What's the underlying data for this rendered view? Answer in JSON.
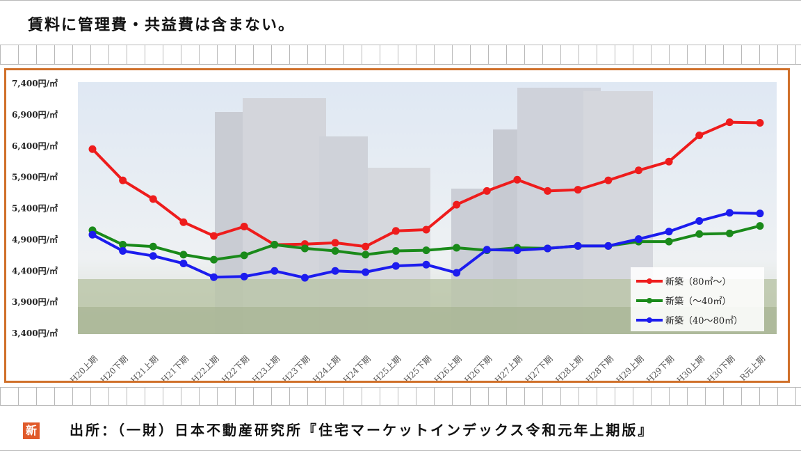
{
  "header_note": "賃料に管理費・共益費は含まない。",
  "source_text": "出所：（一財）日本不動産研究所『住宅マーケットインデックス令和元年上期版』",
  "badge_text": "新",
  "colors": {
    "frame": "#d0702a",
    "red": "#ee1c1c",
    "green": "#1a8a1a",
    "blue": "#1c1cee"
  },
  "chart_data": {
    "type": "line",
    "categories": [
      "H20上期",
      "H20下期",
      "H21上期",
      "H21下期",
      "H22上期",
      "H22下期",
      "H23上期",
      "H23下期",
      "H24上期",
      "H24下期",
      "H25上期",
      "H25下期",
      "H26上期",
      "H26下期",
      "H27上期",
      "H27下期",
      "H28上期",
      "H28下期",
      "H29上期",
      "H29下期",
      "H30上期",
      "H30下期",
      "R元上期"
    ],
    "ylim": [
      3400,
      7400
    ],
    "yticks": [
      3400,
      3900,
      4400,
      4900,
      5400,
      5900,
      6400,
      6900,
      7400
    ],
    "ytick_labels": [
      "3,400円/㎡",
      "3,900円/㎡",
      "4,400円/㎡",
      "4,900円/㎡",
      "5,400円/㎡",
      "5,900円/㎡",
      "6,400円/㎡",
      "6,900円/㎡",
      "7,400円/㎡"
    ],
    "grid": false,
    "legend_position": "bottom-right",
    "series": [
      {
        "name": "新築（80㎡～）",
        "color": "#ee1c1c",
        "values": [
          6350,
          5850,
          5550,
          5180,
          4960,
          5110,
          4820,
          4830,
          4850,
          4790,
          5040,
          5060,
          5460,
          5680,
          5860,
          5680,
          5700,
          5850,
          6010,
          6150,
          6570,
          6780,
          6770
        ]
      },
      {
        "name": "新築（～40㎡）",
        "color": "#1a8a1a",
        "values": [
          5050,
          4820,
          4790,
          4660,
          4580,
          4650,
          4820,
          4760,
          4720,
          4660,
          4720,
          4730,
          4770,
          4730,
          4770,
          4760,
          4800,
          4800,
          4870,
          4870,
          4990,
          5000,
          5120
        ]
      },
      {
        "name": "新築（40～80㎡）",
        "color": "#1c1cee",
        "values": [
          4980,
          4720,
          4640,
          4520,
          4300,
          4310,
          4400,
          4290,
          4400,
          4380,
          4480,
          4500,
          4370,
          4740,
          4730,
          4760,
          4800,
          4800,
          4910,
          5030,
          5200,
          5330,
          5320
        ]
      }
    ]
  }
}
